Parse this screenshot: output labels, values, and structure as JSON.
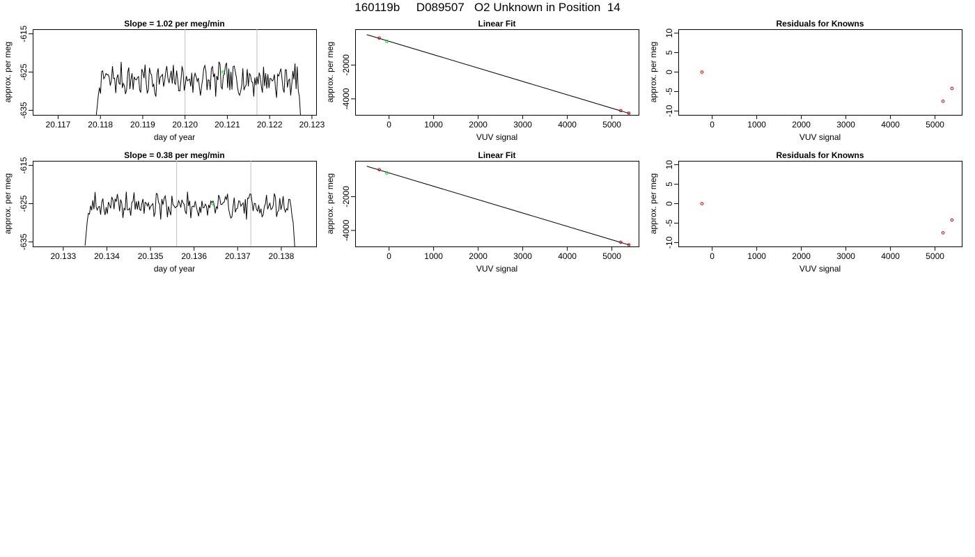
{
  "title": "160119b     D089507   O2 Unknown in Position  14",
  "colors": {
    "trace": "#000000",
    "vline": "#bfbfbf",
    "unknown": "#00cc00",
    "known": "#cc0000",
    "frame": "#000000"
  },
  "chart_data": [
    {
      "type": "line",
      "title": "Slope =  1.02  per meg/min",
      "xlabel": "day of year",
      "ylabel": "approx. per meg",
      "xlim": [
        20.1164,
        20.1231
      ],
      "ylim": [
        -636.2,
        -613.8
      ],
      "xticks": [
        20.117,
        20.118,
        20.119,
        20.12,
        20.121,
        20.122,
        20.123
      ],
      "xtick_labels": [
        "20.117",
        "20.118",
        "20.119",
        "20.120",
        "20.121",
        "20.122",
        "20.123"
      ],
      "yticks": [
        -615,
        -625,
        -635
      ],
      "ytick_labels": [
        "-615",
        "-625",
        "-635"
      ],
      "vlines": [
        20.12,
        20.1217
      ],
      "trace": {
        "start": 20.1179,
        "end": 20.12278,
        "level": -627.0,
        "amp": 2.2,
        "seed": 7
      },
      "unknown_point": [
        20.1209,
        -625.0
      ]
    },
    {
      "type": "scatter",
      "title": "Linear Fit",
      "xlabel": "VUV signal",
      "ylabel": "approx. per meg",
      "xlim": [
        -760,
        5600
      ],
      "ylim": [
        -4950,
        120
      ],
      "xticks": [
        0,
        1000,
        2000,
        3000,
        4000,
        5000
      ],
      "xtick_labels": [
        "0",
        "1000",
        "2000",
        "3000",
        "4000",
        "5000"
      ],
      "yticks": [
        -2000,
        -4000
      ],
      "ytick_labels": [
        "-2000",
        "-4000"
      ],
      "fit_line": [
        [
          -500,
          -200
        ],
        [
          5400,
          -4870
        ]
      ],
      "known_points": [
        [
          -220,
          -400
        ],
        [
          5200,
          -4700
        ],
        [
          5380,
          -4850
        ]
      ],
      "unknown_points": [
        [
          -50,
          -600
        ]
      ]
    },
    {
      "type": "scatter",
      "title": "Residuals for Knowns",
      "xlabel": "VUV signal",
      "ylabel": "approx. per meg",
      "xlim": [
        -760,
        5600
      ],
      "ylim": [
        -11,
        11
      ],
      "xticks": [
        0,
        1000,
        2000,
        3000,
        4000,
        5000
      ],
      "xtick_labels": [
        "0",
        "1000",
        "2000",
        "3000",
        "4000",
        "5000"
      ],
      "yticks": [
        10,
        5,
        0,
        -5,
        -10
      ],
      "ytick_labels": [
        "10",
        "5",
        "0",
        "-5",
        "-10"
      ],
      "known_points": [
        [
          -230,
          0
        ],
        [
          5180,
          -7.5
        ],
        [
          5380,
          -4.2
        ]
      ]
    },
    {
      "type": "line",
      "title": "Slope =  0.38  per meg/min",
      "xlabel": "day of year",
      "ylabel": "approx. per meg",
      "xlim": [
        20.1323,
        20.1388
      ],
      "ylim": [
        -636.2,
        -613.8
      ],
      "xticks": [
        20.133,
        20.134,
        20.135,
        20.136,
        20.137,
        20.138
      ],
      "xtick_labels": [
        "20.133",
        "20.134",
        "20.135",
        "20.136",
        "20.137",
        "20.138"
      ],
      "yticks": [
        -615,
        -625,
        -635
      ],
      "ytick_labels": [
        "-615",
        "-625",
        "-635"
      ],
      "vlines": [
        20.1356,
        20.1373
      ],
      "trace": {
        "start": 20.1335,
        "end": 20.13835,
        "level": -625.5,
        "amp": 1.7,
        "seed": 19
      },
      "unknown_point": [
        20.13643,
        -625.0
      ]
    },
    {
      "type": "scatter",
      "title": "Linear Fit",
      "xlabel": "VUV signal",
      "ylabel": "approx. per meg",
      "xlim": [
        -760,
        5600
      ],
      "ylim": [
        -4950,
        120
      ],
      "xticks": [
        0,
        1000,
        2000,
        3000,
        4000,
        5000
      ],
      "xtick_labels": [
        "0",
        "1000",
        "2000",
        "3000",
        "4000",
        "5000"
      ],
      "yticks": [
        -2000,
        -4000
      ],
      "ytick_labels": [
        "-2000",
        "-4000"
      ],
      "fit_line": [
        [
          -500,
          -200
        ],
        [
          5400,
          -4870
        ]
      ],
      "known_points": [
        [
          -220,
          -400
        ],
        [
          5200,
          -4700
        ],
        [
          5380,
          -4850
        ]
      ],
      "unknown_points": [
        [
          -50,
          -600
        ]
      ]
    },
    {
      "type": "scatter",
      "title": "Residuals for Knowns",
      "xlabel": "VUV signal",
      "ylabel": "approx. per meg",
      "xlim": [
        -760,
        5600
      ],
      "ylim": [
        -11,
        11
      ],
      "xticks": [
        0,
        1000,
        2000,
        3000,
        4000,
        5000
      ],
      "xtick_labels": [
        "0",
        "1000",
        "2000",
        "3000",
        "4000",
        "5000"
      ],
      "yticks": [
        10,
        5,
        0,
        -5,
        -10
      ],
      "ytick_labels": [
        "10",
        "5",
        "0",
        "-5",
        "-10"
      ],
      "known_points": [
        [
          -230,
          0
        ],
        [
          5180,
          -7.5
        ],
        [
          5380,
          -4.2
        ]
      ]
    }
  ]
}
